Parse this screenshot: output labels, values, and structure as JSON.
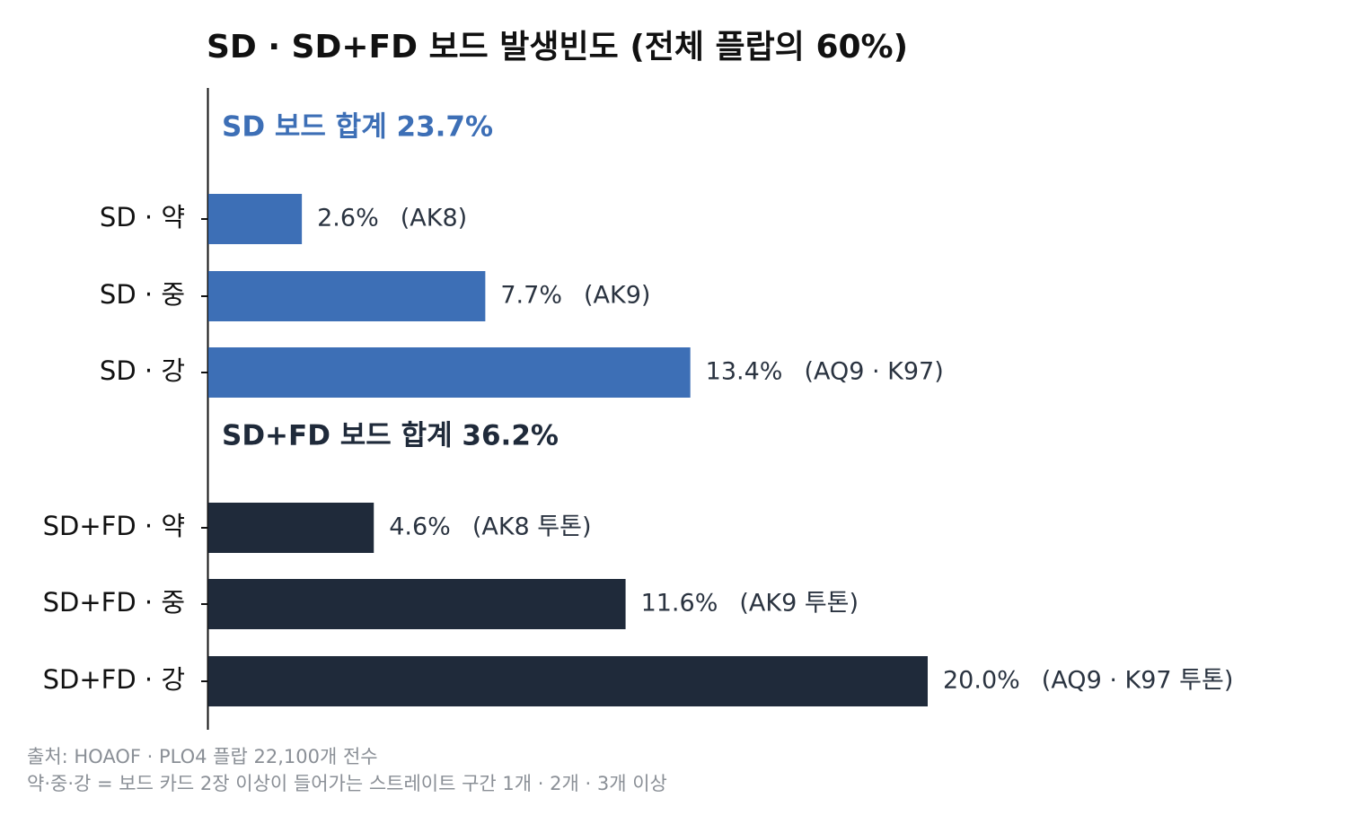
{
  "chart_data": {
    "type": "bar",
    "orientation": "horizontal",
    "title": "SD · SD+FD 보드 발생빈도 (전체 플랍의 60%)",
    "xlim": [
      0,
      23
    ],
    "grid": false,
    "groups": [
      {
        "label": "SD 보드 합계 23.7%",
        "color": "#3d6fb6",
        "bars": [
          {
            "category": "SD · 약",
            "value": 2.6,
            "value_label": "2.6%",
            "note": "(AK8)"
          },
          {
            "category": "SD · 중",
            "value": 7.7,
            "value_label": "7.7%",
            "note": "(AK9)"
          },
          {
            "category": "SD · 강",
            "value": 13.4,
            "value_label": "13.4%",
            "note": "(AQ9 · K97)"
          }
        ]
      },
      {
        "label": "SD+FD 보드 합계 36.2%",
        "color": "#1f2a3a",
        "bars": [
          {
            "category": "SD+FD · 약",
            "value": 4.6,
            "value_label": "4.6%",
            "note": "(AK8 투톤)"
          },
          {
            "category": "SD+FD · 중",
            "value": 11.6,
            "value_label": "11.6%",
            "note": "(AK9 투톤)"
          },
          {
            "category": "SD+FD · 강",
            "value": 20.0,
            "value_label": "20.0%",
            "note": "(AQ9 · K97 투톤)"
          }
        ]
      }
    ]
  },
  "footnotes": [
    "출처: HOAOF · PLO4 플랍 22,100개 전수",
    "약·중·강 = 보드 카드 2장 이상이 들어가는 스트레이트 구간 1개 · 2개 · 3개 이상"
  ]
}
